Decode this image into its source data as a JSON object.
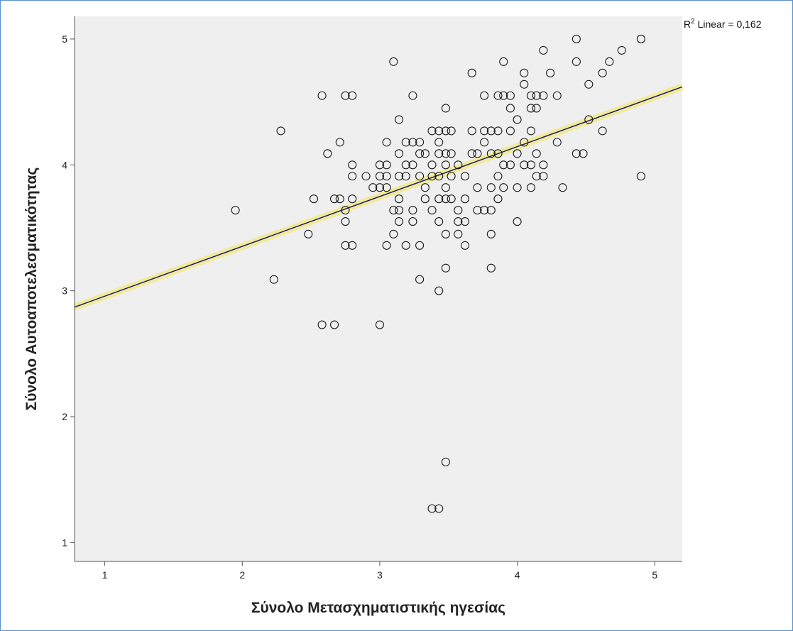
{
  "chart_data": {
    "type": "scatter",
    "xlabel": "Σύνολο Μετασχηματιστικής ηγεσίας",
    "ylabel": "Σύνολο Αυτοαποτελεσματικότητας",
    "xlim": [
      0.78,
      5.2
    ],
    "ylim": [
      0.85,
      5.18
    ],
    "xticks": [
      "1",
      "2",
      "3",
      "4",
      "5"
    ],
    "yticks": [
      "1",
      "2",
      "3",
      "4",
      "5"
    ],
    "grid": false,
    "colors": {
      "plot_background": "#efefef",
      "marker_stroke": "#1a1a1a",
      "fit_line": "#1c1c6e",
      "fit_band": "#f2ea90"
    },
    "fit_line": {
      "label_prefix": "R",
      "label_sup": "2",
      "label_suffix": " Linear = 0,162",
      "x": [
        0.78,
        5.2
      ],
      "y": [
        2.87,
        4.62
      ]
    },
    "series": [
      {
        "points": [
          [
            1.95,
            3.64
          ],
          [
            2.23,
            3.09
          ],
          [
            2.28,
            4.27
          ],
          [
            2.48,
            3.45
          ],
          [
            2.52,
            3.73
          ],
          [
            2.58,
            4.55
          ],
          [
            2.58,
            2.73
          ],
          [
            2.62,
            4.09
          ],
          [
            2.67,
            2.73
          ],
          [
            2.67,
            3.73
          ],
          [
            2.71,
            3.73
          ],
          [
            2.71,
            4.18
          ],
          [
            2.75,
            4.55
          ],
          [
            2.75,
            3.64
          ],
          [
            2.75,
            3.55
          ],
          [
            2.75,
            3.36
          ],
          [
            2.8,
            4.55
          ],
          [
            2.8,
            4.0
          ],
          [
            2.8,
            3.91
          ],
          [
            2.8,
            3.73
          ],
          [
            2.8,
            3.36
          ],
          [
            2.9,
            3.91
          ],
          [
            2.95,
            3.82
          ],
          [
            3.0,
            4.0
          ],
          [
            3.0,
            3.91
          ],
          [
            3.0,
            3.82
          ],
          [
            3.0,
            2.73
          ],
          [
            3.05,
            4.18
          ],
          [
            3.05,
            4.0
          ],
          [
            3.05,
            3.91
          ],
          [
            3.05,
            3.82
          ],
          [
            3.05,
            3.36
          ],
          [
            3.1,
            4.82
          ],
          [
            3.1,
            3.64
          ],
          [
            3.1,
            3.45
          ],
          [
            3.14,
            4.36
          ],
          [
            3.14,
            4.09
          ],
          [
            3.14,
            3.91
          ],
          [
            3.14,
            3.73
          ],
          [
            3.14,
            3.64
          ],
          [
            3.14,
            3.55
          ],
          [
            3.19,
            4.18
          ],
          [
            3.19,
            4.0
          ],
          [
            3.19,
            3.91
          ],
          [
            3.19,
            3.36
          ],
          [
            3.24,
            4.55
          ],
          [
            3.24,
            4.18
          ],
          [
            3.24,
            4.0
          ],
          [
            3.24,
            3.64
          ],
          [
            3.24,
            3.55
          ],
          [
            3.29,
            4.18
          ],
          [
            3.29,
            4.09
          ],
          [
            3.29,
            3.91
          ],
          [
            3.29,
            3.36
          ],
          [
            3.29,
            3.09
          ],
          [
            3.33,
            4.09
          ],
          [
            3.33,
            3.82
          ],
          [
            3.33,
            3.73
          ],
          [
            3.38,
            4.27
          ],
          [
            3.38,
            4.0
          ],
          [
            3.38,
            3.91
          ],
          [
            3.38,
            3.64
          ],
          [
            3.38,
            1.27
          ],
          [
            3.43,
            4.27
          ],
          [
            3.43,
            4.18
          ],
          [
            3.43,
            4.09
          ],
          [
            3.43,
            3.91
          ],
          [
            3.43,
            3.73
          ],
          [
            3.43,
            3.55
          ],
          [
            3.43,
            3.0
          ],
          [
            3.43,
            1.27
          ],
          [
            3.48,
            4.45
          ],
          [
            3.48,
            4.27
          ],
          [
            3.48,
            4.09
          ],
          [
            3.48,
            4.0
          ],
          [
            3.48,
            3.82
          ],
          [
            3.48,
            3.73
          ],
          [
            3.48,
            3.45
          ],
          [
            3.48,
            3.18
          ],
          [
            3.48,
            1.64
          ],
          [
            3.52,
            4.27
          ],
          [
            3.52,
            4.09
          ],
          [
            3.52,
            3.91
          ],
          [
            3.52,
            3.73
          ],
          [
            3.57,
            4.0
          ],
          [
            3.57,
            3.64
          ],
          [
            3.57,
            3.55
          ],
          [
            3.57,
            3.45
          ],
          [
            3.62,
            3.91
          ],
          [
            3.62,
            3.73
          ],
          [
            3.62,
            3.55
          ],
          [
            3.62,
            3.36
          ],
          [
            3.67,
            4.73
          ],
          [
            3.67,
            4.27
          ],
          [
            3.67,
            4.09
          ],
          [
            3.71,
            4.09
          ],
          [
            3.71,
            3.82
          ],
          [
            3.71,
            3.64
          ],
          [
            3.76,
            4.55
          ],
          [
            3.76,
            4.27
          ],
          [
            3.76,
            4.18
          ],
          [
            3.76,
            3.64
          ],
          [
            3.81,
            4.27
          ],
          [
            3.81,
            4.09
          ],
          [
            3.81,
            3.82
          ],
          [
            3.81,
            3.64
          ],
          [
            3.81,
            3.45
          ],
          [
            3.81,
            3.18
          ],
          [
            3.86,
            4.27
          ],
          [
            3.86,
            4.09
          ],
          [
            3.86,
            3.91
          ],
          [
            3.86,
            3.73
          ],
          [
            3.86,
            4.55
          ],
          [
            3.9,
            4.82
          ],
          [
            3.9,
            4.55
          ],
          [
            3.9,
            4.0
          ],
          [
            3.9,
            3.82
          ],
          [
            3.95,
            4.55
          ],
          [
            3.95,
            4.45
          ],
          [
            3.95,
            4.27
          ],
          [
            3.95,
            4.0
          ],
          [
            4.0,
            4.36
          ],
          [
            4.0,
            4.09
          ],
          [
            4.0,
            3.82
          ],
          [
            4.0,
            3.55
          ],
          [
            4.05,
            4.73
          ],
          [
            4.05,
            4.64
          ],
          [
            4.05,
            4.18
          ],
          [
            4.05,
            4.0
          ],
          [
            4.1,
            4.55
          ],
          [
            4.1,
            4.45
          ],
          [
            4.1,
            4.27
          ],
          [
            4.1,
            4.0
          ],
          [
            4.1,
            3.82
          ],
          [
            4.14,
            4.55
          ],
          [
            4.14,
            4.45
          ],
          [
            4.14,
            4.09
          ],
          [
            4.14,
            3.91
          ],
          [
            4.19,
            4.91
          ],
          [
            4.19,
            4.55
          ],
          [
            4.19,
            4.0
          ],
          [
            4.19,
            3.91
          ],
          [
            4.24,
            4.73
          ],
          [
            4.29,
            4.55
          ],
          [
            4.29,
            4.18
          ],
          [
            4.33,
            3.82
          ],
          [
            4.43,
            5.0
          ],
          [
            4.43,
            4.82
          ],
          [
            4.43,
            4.09
          ],
          [
            4.48,
            4.09
          ],
          [
            4.52,
            4.64
          ],
          [
            4.52,
            4.36
          ],
          [
            4.62,
            4.73
          ],
          [
            4.62,
            4.27
          ],
          [
            4.67,
            4.82
          ],
          [
            4.76,
            4.91
          ],
          [
            4.9,
            5.0
          ],
          [
            4.9,
            3.91
          ]
        ]
      }
    ]
  }
}
